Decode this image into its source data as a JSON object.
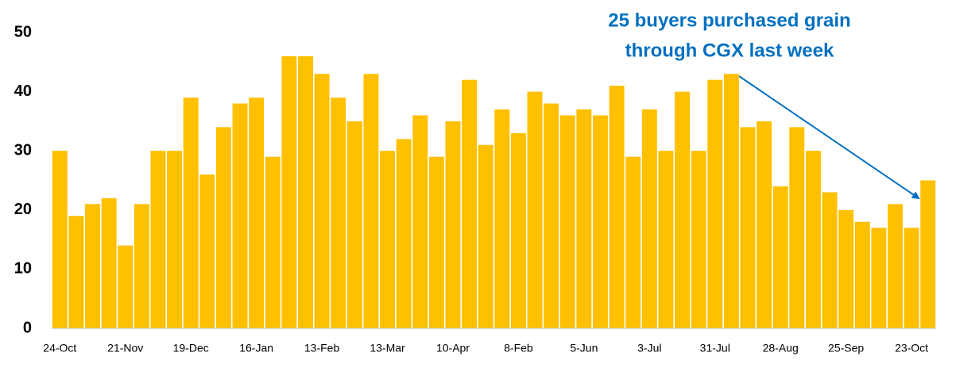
{
  "chart_data": {
    "type": "bar",
    "annotation": [
      "25 buyers purchased grain",
      "through CGX last week"
    ],
    "categories": [
      "24-Oct",
      null,
      null,
      null,
      "21-Nov",
      null,
      null,
      null,
      "19-Dec",
      null,
      null,
      null,
      "16-Jan",
      null,
      null,
      null,
      "13-Feb",
      null,
      null,
      null,
      "13-Mar",
      null,
      null,
      null,
      "10-Apr",
      null,
      null,
      null,
      "8-Feb",
      null,
      null,
      null,
      "5-Jun",
      null,
      null,
      null,
      "3-Jul",
      null,
      null,
      null,
      "31-Jul",
      null,
      null,
      null,
      "28-Aug",
      null,
      null,
      null,
      "25-Sep",
      null,
      null,
      null,
      "23-Oct",
      null
    ],
    "values": [
      30,
      19,
      21,
      22,
      14,
      21,
      30,
      30,
      39,
      26,
      34,
      38,
      39,
      29,
      46,
      46,
      43,
      39,
      35,
      43,
      30,
      32,
      36,
      29,
      35,
      42,
      31,
      37,
      33,
      40,
      38,
      36,
      37,
      36,
      41,
      29,
      37,
      30,
      40,
      30,
      42,
      43,
      34,
      35,
      24,
      34,
      30,
      23,
      20,
      18,
      17,
      21,
      17,
      25
    ],
    "color": "#ffc000",
    "ylim": [
      0,
      50
    ],
    "yticks": [
      0,
      10,
      20,
      30,
      40,
      50
    ],
    "grid": false
  }
}
